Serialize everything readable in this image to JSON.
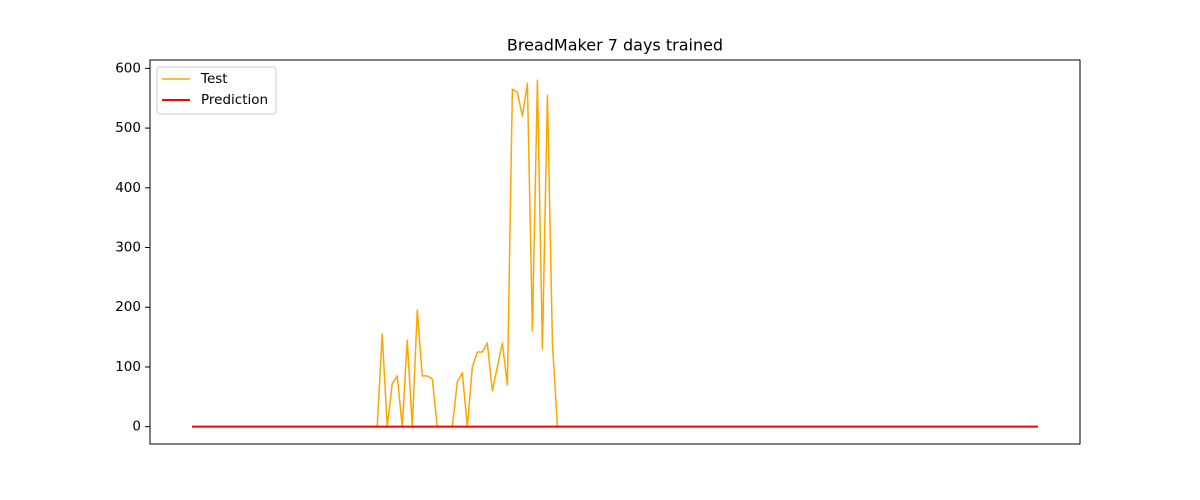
{
  "chart_data": {
    "type": "line",
    "title": "BreadMaker 7 days trained",
    "ylim": [
      -29,
      614
    ],
    "yticks": [
      0,
      100,
      200,
      300,
      400,
      500,
      600
    ],
    "legend": "upper left",
    "series": [
      {
        "name": "Test",
        "color": "#ffa500",
        "values": [
          0,
          0,
          0,
          0,
          0,
          0,
          0,
          0,
          0,
          0,
          0,
          0,
          0,
          0,
          0,
          0,
          0,
          0,
          0,
          0,
          0,
          0,
          0,
          0,
          0,
          0,
          0,
          0,
          0,
          0,
          0,
          0,
          0,
          0,
          0,
          0,
          0,
          0,
          155,
          0,
          72,
          85,
          0,
          145,
          0,
          195,
          85,
          85,
          80,
          0,
          0,
          0,
          0,
          75,
          90,
          0,
          100,
          125,
          125,
          140,
          60,
          100,
          140,
          70,
          565,
          560,
          520,
          575,
          160,
          580,
          130,
          555,
          140,
          0,
          0,
          0,
          0,
          0,
          0,
          0,
          0,
          0,
          0,
          0,
          0,
          0,
          0,
          0,
          0,
          0,
          0,
          0,
          0,
          0,
          0,
          0,
          0,
          0,
          0,
          0,
          0,
          0,
          0,
          0,
          0,
          0,
          0,
          0,
          0,
          0,
          0,
          0,
          0,
          0,
          0,
          0,
          0,
          0,
          0,
          0,
          0,
          0,
          0,
          0,
          0,
          0,
          0,
          0,
          0,
          0,
          0,
          0,
          0,
          0,
          0,
          0,
          0,
          0,
          0,
          0,
          0,
          0,
          0,
          0,
          0,
          0,
          0,
          0,
          0,
          0,
          0,
          0,
          0,
          0,
          0,
          0,
          0,
          0,
          0,
          0,
          0,
          0,
          0,
          0,
          0,
          0,
          0,
          0,
          0,
          0
        ]
      },
      {
        "name": "Prediction",
        "color": "#ff0000",
        "values": [
          0,
          0,
          0,
          0,
          0,
          0,
          0,
          0,
          0,
          0,
          0,
          0,
          0,
          0,
          0,
          0,
          0,
          0,
          0,
          0,
          0,
          0,
          0,
          0,
          0,
          0,
          0,
          0,
          0,
          0,
          0,
          0,
          0,
          0,
          0,
          0,
          0,
          0,
          0,
          0,
          0,
          0,
          0,
          0,
          0,
          0,
          0,
          0,
          0,
          0,
          0,
          0,
          0,
          0,
          0,
          0,
          0,
          0,
          0,
          0,
          0,
          0,
          0,
          0,
          0,
          0,
          0,
          0,
          0,
          0,
          0,
          0,
          0,
          0,
          0,
          0,
          0,
          0,
          0,
          0,
          0,
          0,
          0,
          0,
          0,
          0,
          0,
          0,
          0,
          0,
          0,
          0,
          0,
          0,
          0,
          0,
          0,
          0,
          0,
          0,
          0,
          0,
          0,
          0,
          0,
          0,
          0,
          0,
          0,
          0,
          0,
          0,
          0,
          0,
          0,
          0,
          0,
          0,
          0,
          0,
          0,
          0,
          0,
          0,
          0,
          0,
          0,
          0,
          0,
          0,
          0,
          0,
          0,
          0,
          0,
          0,
          0,
          0,
          0,
          0,
          0,
          0,
          0,
          0,
          0,
          0,
          0,
          0,
          0,
          0,
          0,
          0,
          0,
          0,
          0,
          0,
          0,
          0,
          0,
          0,
          0,
          0,
          0,
          0,
          0,
          0,
          0,
          0,
          0,
          0
        ]
      }
    ]
  }
}
